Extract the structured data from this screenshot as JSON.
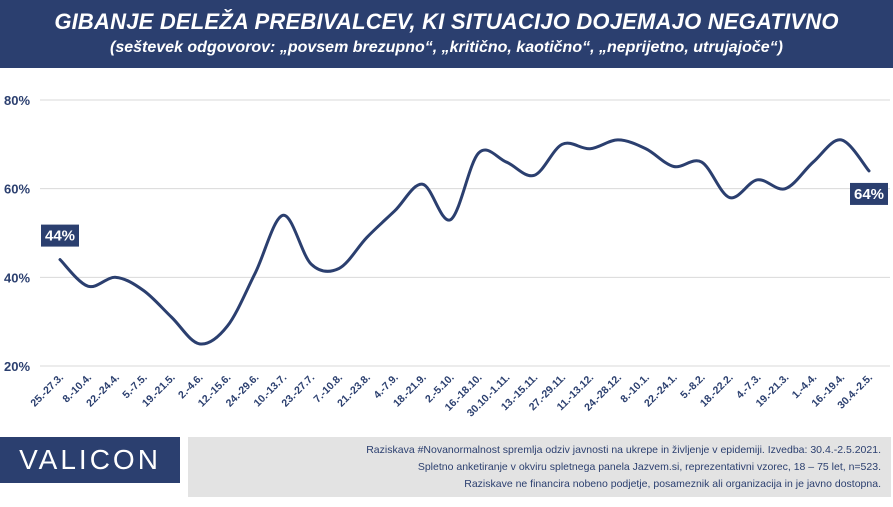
{
  "header": {
    "title": "GIBANJE DELEŽA PREBIVALCEV, KI SITUACIJO DOJEMAJO NEGATIVNO",
    "subtitle": "(seštevek odgovorov: „povsem brezupno“, „kritično, kaotično“, „neprijetno, utrujajoče“)"
  },
  "footer": {
    "logo": "VALICON",
    "notes": [
      "Raziskava #Novanormalnost spremlja odziv javnosti na ukrepe in življenje v epidemiji. Izvedba: 30.4.-2.5.2021.",
      "Spletno anketiranje v okviru spletnega panela Jazvem.si, reprezentativni vzorec, 18 – 75 let, n=523.",
      "Raziskave ne financira nobeno podjetje, posameznik ali organizacija in je javno dostopna."
    ]
  },
  "chart_data": {
    "type": "line",
    "title": "GIBANJE DELEŽA PREBIVALCEV, KI SITUACIJO DOJEMAJO NEGATIVNO",
    "xlabel": "",
    "ylabel": "",
    "ylim": [
      20,
      80
    ],
    "yticks": [
      "20%",
      "40%",
      "60%",
      "80%"
    ],
    "y_tick_values": [
      20,
      40,
      60,
      80
    ],
    "grid": true,
    "line_color": "#2b3f6f",
    "grid_color": "#d9d9d9",
    "categories": [
      "25.-27.3.",
      "8.-10.4.",
      "22.-24.4.",
      "5.-7.5.",
      "19.-21.5.",
      "2.-4.6.",
      "12.-15.6.",
      "24.-29.6.",
      "10.-13.7.",
      "23.-27.7.",
      "7.-10.8.",
      "21.-23.8.",
      "4.-7.9.",
      "18.-21.9.",
      "2.-5.10.",
      "16.-18.10.",
      "30.10.-1.11.",
      "13.-15.11.",
      "27.-29.11.",
      "11.-13.12.",
      "24.-28.12.",
      "8.-10.1.",
      "22.-24.1.",
      "5.-8.2.",
      "18.-22.2.",
      "4.-7.3.",
      "19.-21.3.",
      "1.-4.4.",
      "16.-19.4.",
      "30.4.-2.5."
    ],
    "series": [
      {
        "values": [
          44,
          38,
          40,
          37,
          31,
          25,
          29,
          41,
          54,
          43,
          42,
          49,
          55,
          61,
          53,
          68,
          66,
          63,
          70,
          69,
          71,
          69,
          65,
          66,
          58,
          62,
          60,
          66,
          71,
          64
        ]
      }
    ],
    "data_labels": [
      {
        "index": 0,
        "text": "44%"
      },
      {
        "index": 29,
        "text": "64%"
      }
    ]
  }
}
